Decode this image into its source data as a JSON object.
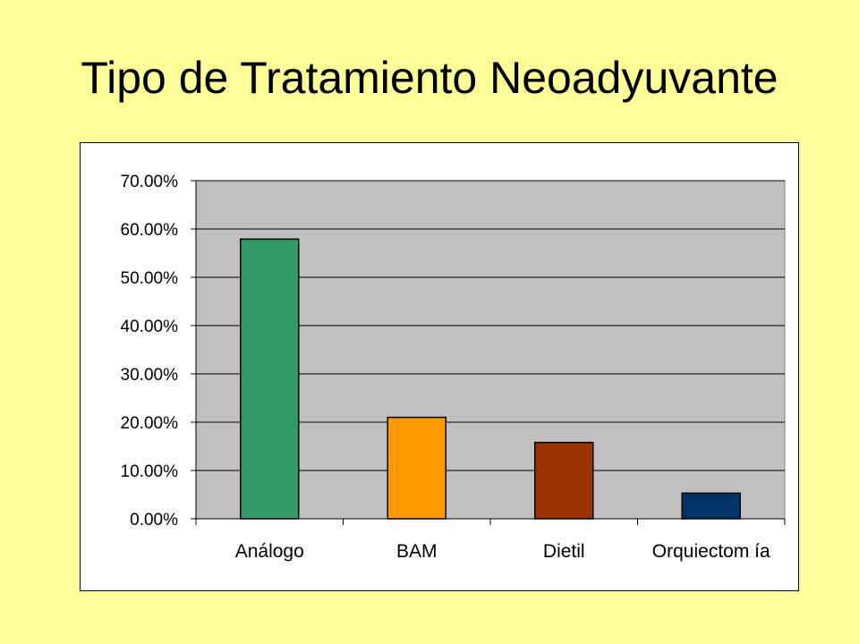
{
  "slide": {
    "title": "Tipo de Tratamiento Neoadyuvante"
  },
  "chart_data": {
    "type": "bar",
    "categories": [
      "Análogo",
      "BAM",
      "Dietil",
      "Orquiectomía"
    ],
    "category_labels": [
      "Análogo",
      "BAM",
      "Dietil",
      "Orquiectom ía"
    ],
    "values": [
      57.9,
      21.0,
      15.8,
      5.3
    ],
    "bar_colors": [
      "#339966",
      "#FF9900",
      "#993300",
      "#003366"
    ],
    "ylim": [
      0,
      70
    ],
    "yticks": [
      0,
      10,
      20,
      30,
      40,
      50,
      60,
      70
    ],
    "ytick_labels": [
      "0.00%",
      "10.00%",
      "20.00%",
      "30.00%",
      "40.00%",
      "50.00%",
      "60.00%",
      "70.00%"
    ],
    "grid": true,
    "plot_background": "#C0C0C0",
    "legend": "none"
  }
}
